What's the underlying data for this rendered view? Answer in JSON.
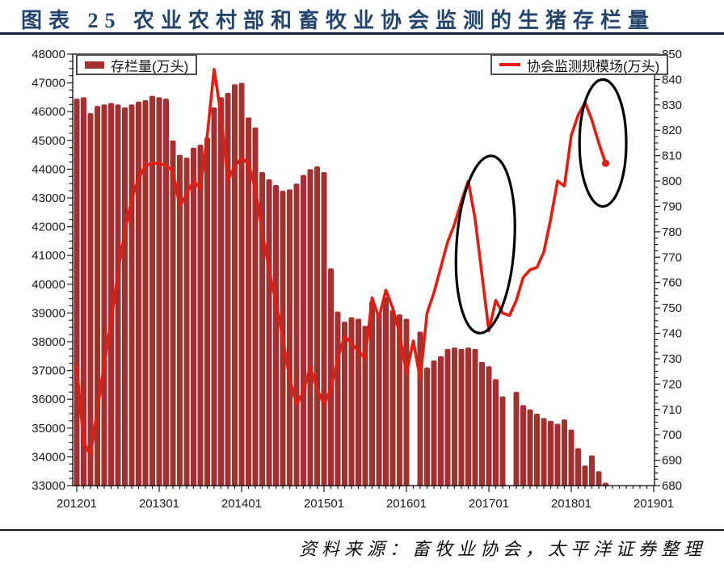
{
  "header": {
    "title": "图表 25 农业农村部和畜牧业协会监测的生猪存栏量"
  },
  "footer": {
    "source": "资料来源：畜牧业协会，太平洋证券整理"
  },
  "legend": {
    "bar_label": "存栏量(万头)",
    "line_label": "协会监测规模场(万头)"
  },
  "colors": {
    "bar": "#a53030",
    "line": "#e51c10",
    "title": "#24466e",
    "axis": "#1a1a1a",
    "annotation": "#000000"
  },
  "chart_data": {
    "type": "combo",
    "x_start": "2012-01",
    "x_freq": "monthly",
    "x_tick_labels": [
      "201201",
      "201301",
      "201401",
      "201501",
      "201601",
      "201701",
      "201801",
      "201901"
    ],
    "left_axis": {
      "min": 33000,
      "max": 48000,
      "step": 1000,
      "minor_step": 250
    },
    "right_axis": {
      "min": 680,
      "max": 850,
      "step": 10,
      "minor_step": 2.5
    },
    "series": [
      {
        "name": "存栏量(万头)",
        "kind": "bar",
        "axis": "left",
        "color": "#a53030",
        "values": [
          46450,
          46500,
          45950,
          46200,
          46250,
          46300,
          46250,
          46150,
          46250,
          46350,
          46400,
          46550,
          46500,
          46450,
          45000,
          44500,
          44400,
          44750,
          44850,
          45100,
          46150,
          46500,
          46650,
          46950,
          47000,
          45800,
          45450,
          43900,
          43650,
          43450,
          43250,
          43300,
          43500,
          43800,
          44000,
          44100,
          43900,
          40550,
          39050,
          38700,
          38850,
          38800,
          38550,
          39400,
          39000,
          39550,
          39100,
          38950,
          38800,
          null,
          38350,
          37100,
          37350,
          37500,
          37750,
          37800,
          37750,
          37800,
          37750,
          37300,
          37150,
          36700,
          36100,
          null,
          36260,
          35800,
          35650,
          35500,
          35350,
          35250,
          35150,
          35300,
          34950,
          34300,
          33700,
          34050,
          33500,
          33100
        ]
      },
      {
        "name": "协会监测规模场(万头)",
        "kind": "line",
        "axis": "right",
        "color": "#e51c10",
        "end_dot": true,
        "values": [
          727,
          697,
          692,
          710,
          728,
          745,
          764,
          780,
          793,
          801,
          806,
          807,
          807,
          806,
          804,
          790,
          795,
          800,
          797,
          818,
          844,
          826,
          800,
          806,
          809,
          807,
          797,
          780,
          765,
          752,
          738,
          722,
          712,
          717,
          727,
          718,
          712,
          718,
          730,
          739,
          736,
          733,
          730,
          754,
          746,
          757,
          750,
          740,
          724,
          737,
          722,
          748,
          756,
          766,
          776,
          783,
          792,
          800,
          785,
          763,
          741,
          753,
          748,
          747,
          753,
          762,
          765,
          766,
          772,
          785,
          800,
          798,
          818,
          826,
          831,
          824,
          815,
          807
        ]
      }
    ],
    "annotations": [
      {
        "shape": "ellipse",
        "cx_month": 59.5,
        "cy_value": 775,
        "rx_months": 4.2,
        "ry_value": 35,
        "rotate": 4
      },
      {
        "shape": "ellipse",
        "cx_month": 76.6,
        "cy_value": 815,
        "rx_months": 3.4,
        "ry_value": 25,
        "rotate": 0
      }
    ]
  }
}
